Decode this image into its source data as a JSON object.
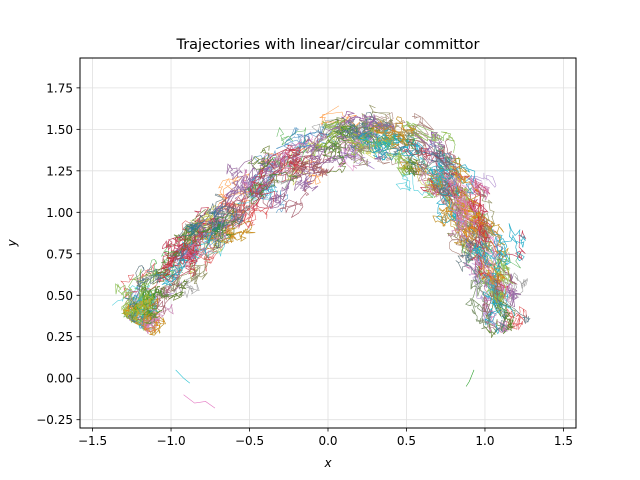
{
  "chart_data": {
    "type": "line",
    "title": "Trajectories with linear/circular committor",
    "xlabel": "x",
    "ylabel": "y",
    "xlim": [
      -1.58,
      1.58
    ],
    "ylim": [
      -0.3,
      1.93
    ],
    "xticks": [
      -1.5,
      -1.0,
      -0.5,
      0.0,
      0.5,
      1.0,
      1.5
    ],
    "xtick_labels": [
      "−1.5",
      "−1.0",
      "−0.5",
      "0.0",
      "0.5",
      "1.0",
      "1.5"
    ],
    "yticks": [
      -0.25,
      0.0,
      0.25,
      0.5,
      0.75,
      1.0,
      1.25,
      1.5,
      1.75
    ],
    "ytick_labels": [
      "−0.25",
      "0.00",
      "0.25",
      "0.50",
      "0.75",
      "1.00",
      "1.25",
      "1.50",
      "1.75"
    ],
    "grid": true,
    "legend": "none",
    "series_colors": [
      "#1f77b4",
      "#ff7f0e",
      "#2ca02c",
      "#d62728",
      "#9467bd",
      "#8c564b",
      "#e377c2",
      "#7f7f7f",
      "#bcbd22",
      "#17becf"
    ],
    "band": {
      "description_points": [
        [
          -1.25,
          0.35
        ],
        [
          -1.1,
          0.55
        ],
        [
          -0.85,
          0.8
        ],
        [
          -0.55,
          1.05
        ],
        [
          -0.25,
          1.3
        ],
        [
          0.05,
          1.45
        ],
        [
          0.3,
          1.45
        ],
        [
          0.55,
          1.38
        ],
        [
          0.78,
          1.18
        ],
        [
          0.95,
          0.9
        ],
        [
          1.08,
          0.6
        ],
        [
          1.18,
          0.3
        ]
      ],
      "half_width": 0.2
    },
    "outliers": [
      [
        [
          -0.92,
          -0.1
        ],
        [
          -0.85,
          -0.15
        ],
        [
          -0.78,
          -0.14
        ],
        [
          -0.72,
          -0.18
        ]
      ],
      [
        [
          -0.97,
          0.05
        ],
        [
          -0.92,
          0.0
        ],
        [
          -0.88,
          -0.03
        ]
      ],
      [
        [
          0.93,
          0.05
        ],
        [
          0.9,
          -0.02
        ],
        [
          0.88,
          -0.05
        ]
      ]
    ]
  }
}
